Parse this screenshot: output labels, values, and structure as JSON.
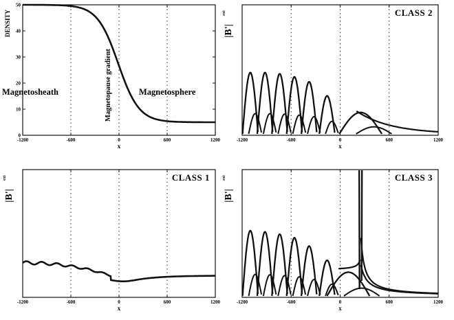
{
  "chart_data": [
    {
      "type": "line",
      "title": "",
      "xlabel": "x",
      "ylabel": "DENSITY",
      "xlim": [
        -1200,
        1200
      ],
      "ylim": [
        0,
        50
      ],
      "xticks": [
        "-1200",
        "-600",
        "0",
        "600",
        "1200"
      ],
      "yticks": [
        "0",
        "10",
        "20",
        "30",
        "40",
        "50"
      ],
      "grid": "vertical dotted lines at x = -600, 0, 600",
      "annotations": [
        "Magnetosheath",
        "Magnetopause gradient",
        "Magnetosphere"
      ],
      "series": [
        {
          "x": [
            -1200,
            -1000,
            -800,
            -600,
            -400,
            -300,
            -200,
            -100,
            0,
            100,
            200,
            300,
            400,
            600,
            800,
            1000,
            1200
          ],
          "values": [
            49.9,
            49.7,
            49.2,
            47.9,
            44.3,
            40.5,
            34.8,
            27.6,
            20.1,
            13.8,
            9.6,
            7.2,
            6.0,
            5.3,
            5.1,
            5.0,
            5.0
          ]
        }
      ]
    },
    {
      "type": "line",
      "title": "CLASS 2",
      "xlabel": "x",
      "ylabel": "|B'|",
      "ylabel_sub": "ext",
      "xlim": [
        -1200,
        1200
      ],
      "xticks": [
        "-1200",
        "-600",
        "0",
        "600",
        "1200"
      ],
      "grid": "vertical dotted lines at x = -600, 0, 600",
      "series_description": "Harmonic eigenfunction envelopes with peaks near x = -1100, -920, -740, -560, -380, -160, 250",
      "peaks": [
        {
          "x": -1100,
          "y": 1.0
        },
        {
          "x": -920,
          "y": 1.0
        },
        {
          "x": -740,
          "y": 0.98
        },
        {
          "x": -560,
          "y": 0.93
        },
        {
          "x": -380,
          "y": 0.85
        },
        {
          "x": -160,
          "y": 0.62
        },
        {
          "x": 250,
          "y": 0.35
        }
      ]
    },
    {
      "type": "line",
      "title": "CLASS 1",
      "xlabel": "x",
      "ylabel": "|B'|",
      "ylabel_sub": "ext",
      "xlim": [
        -1200,
        1200
      ],
      "xticks": [
        "-1200",
        "-600",
        "0",
        "600",
        "1200"
      ],
      "grid": "vertical dotted lines at x = -600, 0, 600",
      "series_description": "Weakly oscillating amplitude that decays toward the magnetopause and stays nearly flat inside",
      "series": [
        {
          "x": [
            -1200,
            -1000,
            -800,
            -600,
            -400,
            -200,
            0,
            200,
            400,
            600,
            800,
            1000,
            1200
          ],
          "values": [
            0.33,
            0.31,
            0.3,
            0.3,
            0.26,
            0.2,
            0.15,
            0.13,
            0.15,
            0.17,
            0.18,
            0.185,
            0.19
          ]
        }
      ]
    },
    {
      "type": "line",
      "title": "CLASS 3",
      "xlabel": "x",
      "ylabel": "|B'|",
      "ylabel_sub": "ext",
      "xlim": [
        -1200,
        1200
      ],
      "xticks": [
        "-1200",
        "-600",
        "0",
        "600",
        "1200"
      ],
      "grid": "vertical dotted lines at x = -600, 0, 600",
      "series_description": "Harmonic envelopes plus a singular resonance spike near x = 250",
      "resonance_x": 250,
      "peaks": [
        {
          "x": -1100,
          "y": 0.55
        },
        {
          "x": -920,
          "y": 0.54
        },
        {
          "x": -740,
          "y": 0.52
        },
        {
          "x": -560,
          "y": 0.49
        },
        {
          "x": -380,
          "y": 0.42
        },
        {
          "x": -160,
          "y": 0.3
        },
        {
          "x": 100,
          "y": 0.2
        }
      ]
    }
  ]
}
